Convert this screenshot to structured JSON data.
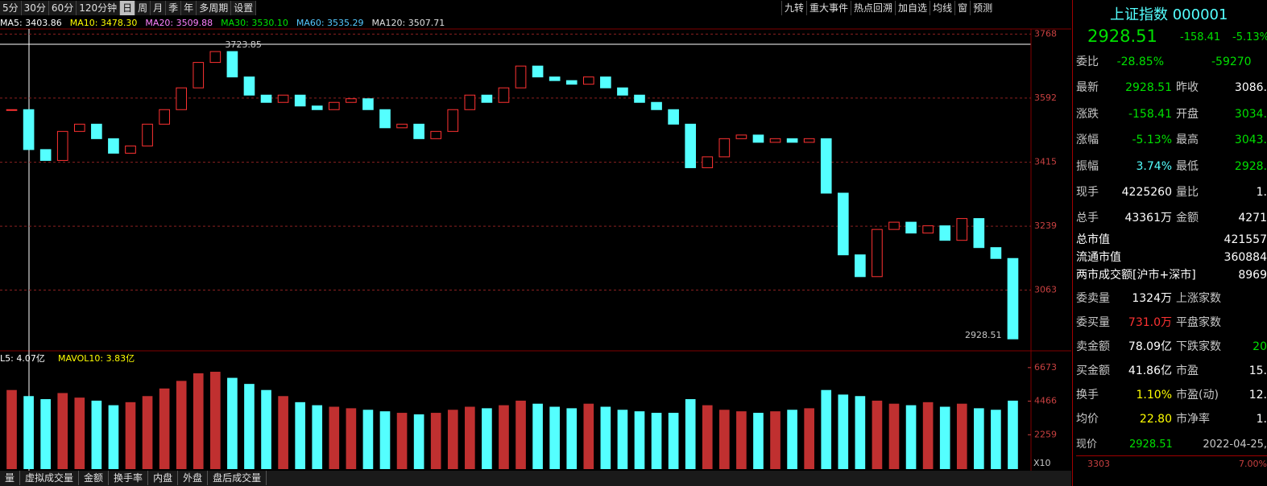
{
  "toolbar": {
    "periods": [
      "5分",
      "30分",
      "60分",
      "120分钟",
      "日",
      "周",
      "月",
      "季",
      "年",
      "多周期",
      "设置"
    ],
    "active": "日",
    "tools": [
      "九转",
      "重大事件",
      "热点回溯",
      "加自选",
      "均线",
      "窗",
      "预测"
    ]
  },
  "ma_legend": [
    {
      "label": "MA5: 3403.86",
      "color": "#ffffff"
    },
    {
      "label": "MA10: 3478.30",
      "color": "#ffff00"
    },
    {
      "label": "MA20: 3509.88",
      "color": "#ff80ff"
    },
    {
      "label": "MA30: 3530.10",
      "color": "#00e600"
    },
    {
      "label": "MA60: 3535.29",
      "color": "#54c8ff"
    },
    {
      "label": "MA120: 3507.71",
      "color": "#e0e0e0"
    }
  ],
  "chart_data": {
    "type": "candlestick",
    "up_color": "#ff3232",
    "down_color": "#54ffff",
    "values": [
      3560,
      3450,
      3420,
      3500,
      3520,
      3480,
      3440,
      3460,
      3520,
      3560,
      3620,
      3690,
      3720,
      3650,
      3600,
      3580,
      3600,
      3570,
      3560,
      3580,
      3590,
      3560,
      3510,
      3520,
      3480,
      3500,
      3560,
      3600,
      3580,
      3620,
      3680,
      3650,
      3640,
      3630,
      3650,
      3620,
      3600,
      3580,
      3560,
      3520,
      3400,
      3430,
      3480,
      3490,
      3470,
      3480,
      3470,
      3480,
      3330,
      3160,
      3100,
      3230,
      3250,
      3220,
      3240,
      3200,
      3260,
      3180,
      3150,
      2928.51
    ],
    "ylim": [
      2920,
      3780
    ],
    "yticks": [
      3063,
      3239,
      3415,
      3592,
      3768
    ],
    "high_label": "3723.85",
    "last_label": "2928.51",
    "volume": {
      "values": [
        5200,
        4800,
        4600,
        5000,
        4700,
        4500,
        4200,
        4400,
        4800,
        5300,
        5800,
        6300,
        6400,
        6000,
        5600,
        5200,
        4800,
        4400,
        4200,
        4100,
        4000,
        3900,
        3800,
        3700,
        3600,
        3700,
        3900,
        4100,
        4000,
        4200,
        4500,
        4300,
        4100,
        4000,
        4300,
        4100,
        3900,
        3800,
        3700,
        3700,
        4600,
        4200,
        3900,
        3800,
        3700,
        3800,
        3900,
        4000,
        5200,
        4900,
        4800,
        4500,
        4300,
        4200,
        4400,
        4100,
        4300,
        4000,
        3900,
        4500
      ],
      "ylim": [
        0,
        7300
      ],
      "yticks": [
        2259,
        4466,
        6673
      ],
      "legend": [
        "L5: 4.07亿",
        "MAVOL10: 3.83亿"
      ],
      "scale_label": "X10"
    }
  },
  "tabs": [
    "量",
    "虚拟成交量",
    "金额",
    "换手率",
    "内盘",
    "外盘",
    "盘后成交量"
  ],
  "quote": {
    "title": "上证指数 000001",
    "price": "2928.51",
    "change": "-158.41",
    "pct": "-5.13%",
    "rows": [
      {
        "cells": [
          "委比",
          "-28.85%",
          "-59270"
        ],
        "colors": [
          "#c8c8c8",
          "#00e000",
          "#00e000"
        ]
      },
      {
        "cells": [
          "最新",
          "2928.51",
          "昨收",
          "3086."
        ],
        "colors": [
          "#c8c8c8",
          "#00e000",
          "#c8c8c8",
          "#ffffff"
        ]
      },
      {
        "cells": [
          "涨跌",
          "-158.41",
          "开盘",
          "3034."
        ],
        "colors": [
          "#c8c8c8",
          "#00e000",
          "#c8c8c8",
          "#00e000"
        ]
      },
      {
        "cells": [
          "涨幅",
          "-5.13%",
          "最高",
          "3043."
        ],
        "colors": [
          "#c8c8c8",
          "#00e000",
          "#c8c8c8",
          "#00e000"
        ]
      },
      {
        "cells": [
          "振幅",
          "3.74%",
          "最低",
          "2928."
        ],
        "colors": [
          "#c8c8c8",
          "#54ffff",
          "#c8c8c8",
          "#00e000"
        ]
      },
      {
        "cells": [
          "现手",
          "4225260",
          "量比",
          "1."
        ],
        "colors": [
          "#c8c8c8",
          "#ffffff",
          "#c8c8c8",
          "#ffffff"
        ]
      },
      {
        "cells": [
          "总手",
          "43361万",
          "金额",
          "4271"
        ],
        "colors": [
          "#c8c8c8",
          "#ffffff",
          "#c8c8c8",
          "#ffffff"
        ]
      }
    ],
    "market": [
      [
        "总市值",
        "421557"
      ],
      [
        "流通市值",
        "360884"
      ],
      [
        "两市成交额[沪市+深市]",
        "8969"
      ]
    ],
    "rows2": [
      {
        "cells": [
          "委卖量",
          "1324万",
          "上涨家数",
          ""
        ],
        "colors": [
          "#c8c8c8",
          "#ffffff",
          "#c8c8c8",
          "#ffffff"
        ]
      },
      {
        "cells": [
          "委买量",
          "731.0万",
          "平盘家数",
          ""
        ],
        "colors": [
          "#c8c8c8",
          "#ff3232",
          "#c8c8c8",
          "#ffffff"
        ]
      },
      {
        "cells": [
          "卖金额",
          "78.09亿",
          "下跌家数",
          "20"
        ],
        "colors": [
          "#c8c8c8",
          "#ffffff",
          "#c8c8c8",
          "#00e000"
        ]
      },
      {
        "cells": [
          "买金额",
          "41.86亿",
          "市盈",
          "15."
        ],
        "colors": [
          "#c8c8c8",
          "#ffffff",
          "#c8c8c8",
          "#ffffff"
        ]
      },
      {
        "cells": [
          "换手",
          "1.10%",
          "市盈(动)",
          "12."
        ],
        "colors": [
          "#c8c8c8",
          "#ffff00",
          "#c8c8c8",
          "#ffffff"
        ]
      },
      {
        "cells": [
          "均价",
          "22.80",
          "市净率",
          "1."
        ],
        "colors": [
          "#c8c8c8",
          "#ffff00",
          "#c8c8c8",
          "#ffffff"
        ]
      }
    ],
    "now": [
      "现价",
      "2928.51",
      "2022-04-25,"
    ],
    "mini": [
      "3303",
      "7.00%"
    ]
  }
}
